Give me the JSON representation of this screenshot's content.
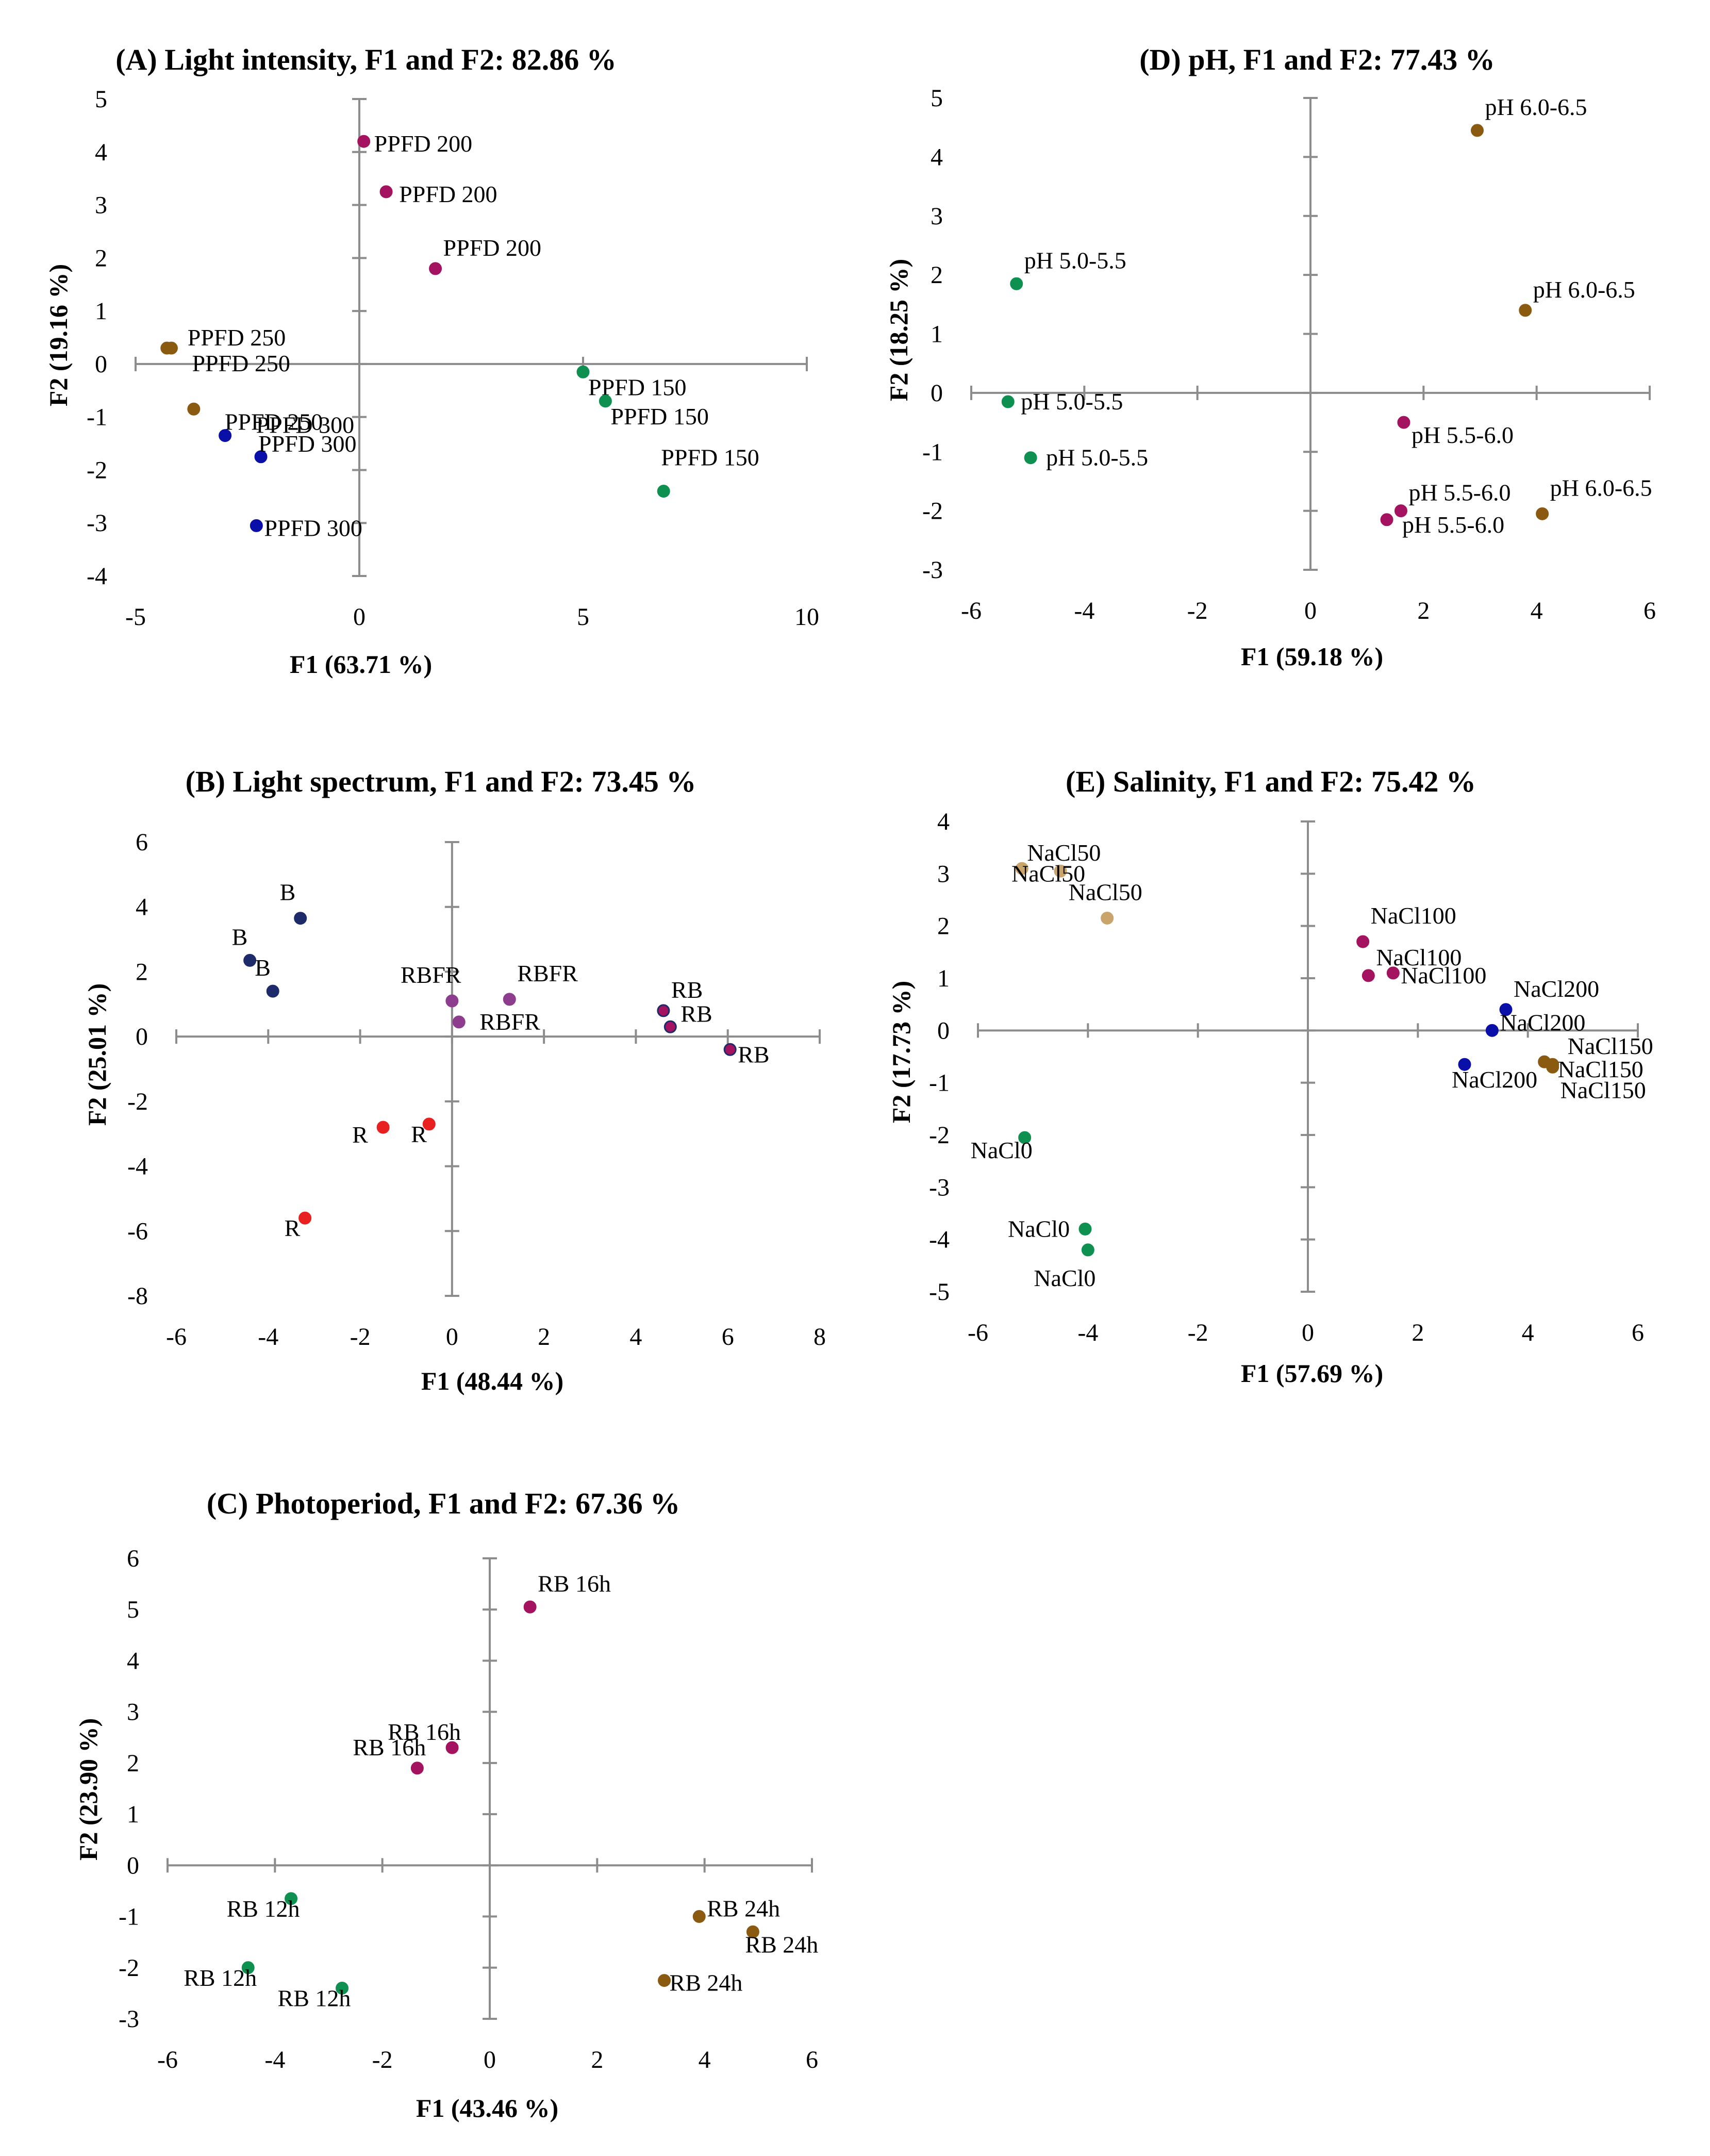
{
  "colors": {
    "axis": "#8c8c8c",
    "green": "#0e9150",
    "magenta": "#a3135f",
    "brown": "#8a5a10",
    "navy": "#0a0fa8",
    "darknavy": "#1d2b6b",
    "purple": "#8e3c8e",
    "red": "#e82020",
    "tan": "#c9a46b"
  },
  "chart_data": [
    {
      "id": "A",
      "type": "scatter",
      "title": "(A) Light intensity, F1 and F2: 82.86 %",
      "xlabel": "F1 (63.71 %)",
      "ylabel": "F2 (19.16 %)",
      "xlim": [
        -5,
        10
      ],
      "ylim": [
        -4,
        5
      ],
      "xticks": [
        -5,
        0,
        5,
        10
      ],
      "yticks": [
        -4,
        -3,
        -2,
        -1,
        0,
        1,
        2,
        3,
        4,
        5
      ],
      "grid": false,
      "points": [
        {
          "x": 0.1,
          "y": 4.2,
          "label": "PPFD 200",
          "color": "magenta"
        },
        {
          "x": 0.6,
          "y": 3.25,
          "label": "PPFD 200",
          "color": "magenta"
        },
        {
          "x": 1.7,
          "y": 1.8,
          "label": "PPFD 200",
          "color": "magenta"
        },
        {
          "x": -4.3,
          "y": 0.3,
          "label": "PPFD 250",
          "color": "brown"
        },
        {
          "x": -4.2,
          "y": 0.3,
          "label": "PPFD 250",
          "color": "brown"
        },
        {
          "x": -3.7,
          "y": -0.85,
          "label": "PPFD 250",
          "color": "brown"
        },
        {
          "x": -3.0,
          "y": -1.35,
          "label": "PPFD 300",
          "color": "navy"
        },
        {
          "x": -2.2,
          "y": -1.75,
          "label": "PPFD 300",
          "color": "navy"
        },
        {
          "x": -2.3,
          "y": -3.05,
          "label": "PPFD 300",
          "color": "navy"
        },
        {
          "x": 5.0,
          "y": -0.15,
          "label": "PPFD 150",
          "color": "green"
        },
        {
          "x": 5.5,
          "y": -0.7,
          "label": "PPFD 150",
          "color": "green"
        },
        {
          "x": 6.8,
          "y": -2.4,
          "label": "PPFD 150",
          "color": "green"
        }
      ]
    },
    {
      "id": "B",
      "type": "scatter",
      "title": "(B) Light spectrum, F1 and F2: 73.45 %",
      "xlabel": "F1 (48.44 %)",
      "ylabel": "F2 (25.01 %)",
      "xlim": [
        -6,
        8
      ],
      "ylim": [
        -8,
        6
      ],
      "xticks": [
        -6,
        -4,
        -2,
        0,
        2,
        4,
        6,
        8
      ],
      "yticks": [
        -8,
        -6,
        -4,
        -2,
        0,
        2,
        4,
        6
      ],
      "grid": false,
      "points": [
        {
          "x": -3.3,
          "y": 3.65,
          "label": "B",
          "color": "darknavy"
        },
        {
          "x": -4.4,
          "y": 2.35,
          "label": "B",
          "color": "darknavy"
        },
        {
          "x": -3.9,
          "y": 1.4,
          "label": "B",
          "color": "darknavy"
        },
        {
          "x": 0.0,
          "y": 1.1,
          "label": "RBFR",
          "color": "purple"
        },
        {
          "x": 1.25,
          "y": 1.15,
          "label": "RBFR",
          "color": "purple"
        },
        {
          "x": 0.15,
          "y": 0.45,
          "label": "RBFR",
          "color": "purple"
        },
        {
          "x": 4.6,
          "y": 0.8,
          "label": "RB",
          "color": "magenta"
        },
        {
          "x": 4.75,
          "y": 0.3,
          "label": "RB",
          "color": "magenta"
        },
        {
          "x": 6.05,
          "y": -0.4,
          "label": "RB",
          "color": "magenta"
        },
        {
          "x": -1.5,
          "y": -2.8,
          "label": "R",
          "color": "red"
        },
        {
          "x": -0.5,
          "y": -2.7,
          "label": "R",
          "color": "red"
        },
        {
          "x": -3.2,
          "y": -5.6,
          "label": "R",
          "color": "red"
        }
      ]
    },
    {
      "id": "C",
      "type": "scatter",
      "title": "(C) Photoperiod, F1 and F2: 67.36 %",
      "xlabel": "F1 (43.46 %)",
      "ylabel": "F2 (23.90 %)",
      "xlim": [
        -6,
        6
      ],
      "ylim": [
        -3,
        6
      ],
      "xticks": [
        -6,
        -4,
        -2,
        0,
        2,
        4,
        6
      ],
      "yticks": [
        -3,
        -2,
        -1,
        0,
        1,
        2,
        3,
        4,
        5,
        6
      ],
      "grid": false,
      "points": [
        {
          "x": 0.75,
          "y": 5.05,
          "label": "RB 16h",
          "color": "magenta"
        },
        {
          "x": -0.7,
          "y": 2.3,
          "label": "RB 16h",
          "color": "magenta"
        },
        {
          "x": -1.35,
          "y": 1.9,
          "label": "RB 16h",
          "color": "magenta"
        },
        {
          "x": -3.7,
          "y": -0.65,
          "label": "RB 12h",
          "color": "green"
        },
        {
          "x": -4.5,
          "y": -2.0,
          "label": "RB 12h",
          "color": "green"
        },
        {
          "x": -2.75,
          "y": -2.4,
          "label": "RB 12h",
          "color": "green"
        },
        {
          "x": 3.9,
          "y": -1.0,
          "label": "RB 24h",
          "color": "brown"
        },
        {
          "x": 4.9,
          "y": -1.3,
          "label": "RB 24h",
          "color": "brown"
        },
        {
          "x": 3.25,
          "y": -2.25,
          "label": "RB 24h",
          "color": "brown"
        }
      ]
    },
    {
      "id": "D",
      "type": "scatter",
      "title": "(D) pH, F1 and F2: 77.43 %",
      "xlabel": "F1 (59.18 %)",
      "ylabel": "F2 (18.25 %)",
      "xlim": [
        -6,
        6
      ],
      "ylim": [
        -3,
        5
      ],
      "xticks": [
        -6,
        -4,
        -2,
        0,
        2,
        4,
        6
      ],
      "yticks": [
        -3,
        -2,
        -1,
        0,
        1,
        2,
        3,
        4,
        5
      ],
      "grid": false,
      "points": [
        {
          "x": 2.95,
          "y": 4.45,
          "label": "pH 6.0-6.5",
          "color": "brown"
        },
        {
          "x": 3.8,
          "y": 1.4,
          "label": "pH 6.0-6.5",
          "color": "brown"
        },
        {
          "x": 4.1,
          "y": -2.05,
          "label": "pH 6.0-6.5",
          "color": "brown"
        },
        {
          "x": -5.2,
          "y": 1.85,
          "label": "pH 5.0-5.5",
          "color": "green"
        },
        {
          "x": -5.35,
          "y": -0.15,
          "label": "pH 5.0-5.5",
          "color": "green"
        },
        {
          "x": -4.95,
          "y": -1.1,
          "label": "pH 5.0-5.5",
          "color": "green"
        },
        {
          "x": 1.65,
          "y": -0.5,
          "label": "pH 5.5-6.0",
          "color": "magenta"
        },
        {
          "x": 1.6,
          "y": -2.0,
          "label": "pH 5.5-6.0",
          "color": "magenta"
        },
        {
          "x": 1.35,
          "y": -2.15,
          "label": "pH 5.5-6.0",
          "color": "magenta"
        }
      ]
    },
    {
      "id": "E",
      "type": "scatter",
      "title": "(E) Salinity, F1 and F2: 75.42 %",
      "xlabel": "F1 (57.69 %)",
      "ylabel": "F2 (17.73 %)",
      "xlim": [
        -6,
        6
      ],
      "ylim": [
        -5,
        4
      ],
      "xticks": [
        -6,
        -4,
        -2,
        0,
        2,
        4,
        6
      ],
      "yticks": [
        -5,
        -4,
        -3,
        -2,
        -1,
        0,
        1,
        2,
        3,
        4
      ],
      "grid": false,
      "points": [
        {
          "x": -5.2,
          "y": 3.1,
          "label": "NaCl50",
          "color": "tan"
        },
        {
          "x": -4.5,
          "y": 3.05,
          "label": "NaCl50",
          "color": "tan"
        },
        {
          "x": -3.65,
          "y": 2.15,
          "label": "NaCl50",
          "color": "tan"
        },
        {
          "x": 1.0,
          "y": 1.7,
          "label": "NaCl100",
          "color": "magenta"
        },
        {
          "x": 1.1,
          "y": 1.05,
          "label": "NaCl100",
          "color": "magenta"
        },
        {
          "x": 1.55,
          "y": 1.1,
          "label": "NaCl100",
          "color": "magenta"
        },
        {
          "x": 3.6,
          "y": 0.4,
          "label": "NaCl200",
          "color": "navy"
        },
        {
          "x": 3.35,
          "y": 0.0,
          "label": "NaCl200",
          "color": "navy"
        },
        {
          "x": 2.85,
          "y": -0.65,
          "label": "NaCl200",
          "color": "navy"
        },
        {
          "x": 4.3,
          "y": -0.6,
          "label": "NaCl150",
          "color": "brown"
        },
        {
          "x": 4.45,
          "y": -0.65,
          "label": "NaCl150",
          "color": "brown"
        },
        {
          "x": 4.45,
          "y": -0.7,
          "label": "NaCl150",
          "color": "brown"
        },
        {
          "x": -5.15,
          "y": -2.05,
          "label": "NaCl0",
          "color": "green"
        },
        {
          "x": -4.05,
          "y": -3.8,
          "label": "NaCl0",
          "color": "green"
        },
        {
          "x": -4.0,
          "y": -4.2,
          "label": "NaCl0",
          "color": "green"
        }
      ]
    }
  ]
}
